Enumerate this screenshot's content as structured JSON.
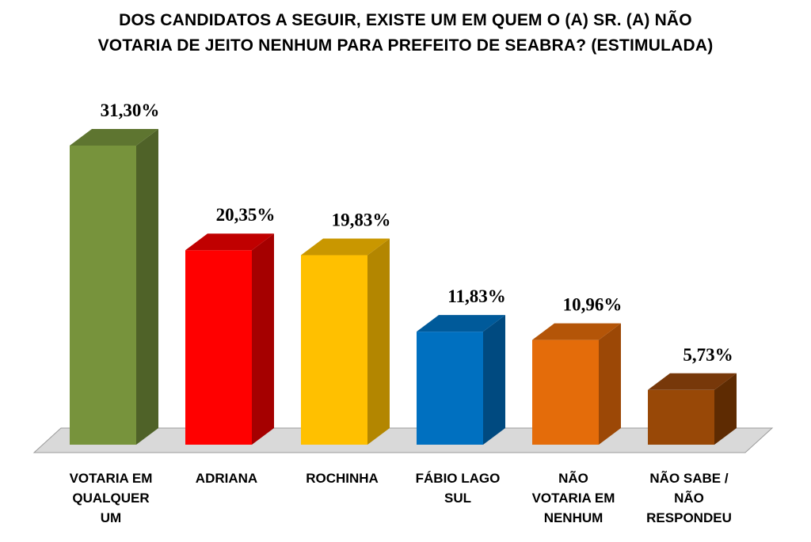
{
  "title_lines": [
    "DOS CANDIDATOS A SEGUIR, EXISTE UM EM QUEM O (A) SR. (A) NÃO",
    "VOTARIA DE JEITO NENHUM PARA PREFEITO DE SEABRA? (ESTIMULADA)"
  ],
  "chart_data": {
    "type": "bar",
    "title": "DOS CANDIDATOS A SEGUIR, EXISTE UM EM QUEM O (A) SR. (A) NÃO VOTARIA DE JEITO NENHUM PARA PREFEITO DE SEABRA? (ESTIMULADA)",
    "categories": [
      "VOTARIA EM QUALQUER UM",
      "ADRIANA",
      "ROCHINHA",
      "FÁBIO LAGO SUL",
      "NÃO VOTARIA EM NENHUM",
      "NÃO SABE / NÃO RESPONDEU"
    ],
    "category_label_lines": [
      [
        "VOTARIA EM",
        "QUALQUER",
        "UM"
      ],
      [
        "ADRIANA"
      ],
      [
        "ROCHINHA"
      ],
      [
        "FÁBIO LAGO",
        "SUL"
      ],
      [
        "NÃO",
        "VOTARIA EM",
        "NENHUM"
      ],
      [
        "NÃO SABE /",
        "NÃO",
        "RESPONDEU"
      ]
    ],
    "values": [
      31.3,
      20.35,
      19.83,
      11.83,
      10.96,
      5.73
    ],
    "value_labels": [
      "31,30%",
      "20,35%",
      "19,83%",
      "11,83%",
      "10,96%",
      "5,73%"
    ],
    "colors": [
      "#77933C",
      "#FF0000",
      "#FFC000",
      "#0070C0",
      "#E46C0A",
      "#984807"
    ],
    "side_colors": [
      "#4F6228",
      "#A50000",
      "#B38600",
      "#004A80",
      "#9C4806",
      "#5E2B02"
    ],
    "top_colors": [
      "#5E7530",
      "#C00000",
      "#C99700",
      "#005A9A",
      "#B45508",
      "#77380A"
    ],
    "floor_color": "#D9D9D9",
    "ylim": [
      0,
      35
    ],
    "grid": false,
    "legend": "none",
    "xlabel": "",
    "ylabel": ""
  }
}
